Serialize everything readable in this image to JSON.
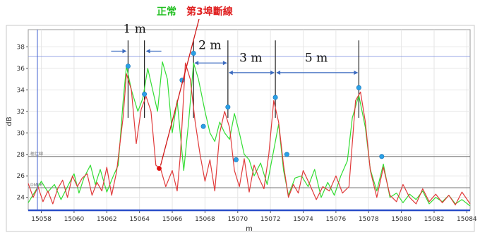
{
  "chart_data": {
    "type": "line",
    "xlabel": "m",
    "ylabel": "dB",
    "xlim": [
      15057.2,
      15084.2
    ],
    "ylim": [
      22.8,
      39.6
    ],
    "x_ticks": [
      15058,
      15060,
      15062,
      15064,
      15066,
      15068,
      15070,
      15072,
      15074,
      15076,
      15078,
      15080,
      15082,
      15084
    ],
    "y_ticks": [
      24,
      26,
      28,
      30,
      32,
      34,
      36,
      38
    ],
    "grid": true,
    "legend": {
      "normal_label": "正常",
      "broken_label": "第3埠斷線",
      "normal_color": "#33dd33",
      "broken_color": "#e03a3a"
    },
    "ref_lines": [
      {
        "y": 27.8,
        "label": "極佳線"
      },
      {
        "y": 24.9,
        "label": "DMPR"
      }
    ],
    "series": [
      {
        "name": "正常",
        "color": "#33dd33",
        "x": [
          15057.2,
          15057.6,
          15058.0,
          15058.4,
          15058.8,
          15059.2,
          15059.6,
          15060.0,
          15060.3,
          15060.6,
          15061.0,
          15061.3,
          15061.6,
          15062.0,
          15062.4,
          15062.7,
          15063.0,
          15063.2,
          15063.5,
          15063.9,
          15064.2,
          15064.5,
          15064.8,
          15065.1,
          15065.4,
          15065.7,
          15066.0,
          15066.3,
          15066.7,
          15067.0,
          15067.3,
          15067.6,
          15068.0,
          15068.3,
          15068.6,
          15068.9,
          15069.2,
          15069.5,
          15069.8,
          15070.1,
          15070.4,
          15070.7,
          15071.0,
          15071.4,
          15071.8,
          15072.2,
          15072.5,
          15072.8,
          15073.1,
          15073.5,
          15073.9,
          15074.3,
          15074.7,
          15075.1,
          15075.5,
          15075.9,
          15076.3,
          15076.7,
          15077.0,
          15077.4,
          15077.8,
          15078.1,
          15078.5,
          15078.9,
          15079.3,
          15079.7,
          15080.1,
          15080.5,
          15080.9,
          15081.3,
          15081.7,
          15082.1,
          15082.5,
          15082.9,
          15083.3,
          15083.7,
          15084.2
        ],
        "y": [
          23.5,
          24.5,
          25.5,
          24.5,
          25.2,
          23.8,
          25.0,
          26.2,
          24.4,
          25.8,
          27.0,
          25.2,
          26.6,
          24.5,
          26.0,
          27.0,
          33.0,
          36.2,
          34.0,
          32.0,
          33.2,
          36.0,
          34.0,
          32.0,
          36.6,
          35.0,
          30.0,
          33.0,
          26.5,
          31.0,
          36.5,
          35.0,
          32.0,
          30.0,
          29.2,
          31.0,
          30.0,
          29.4,
          31.8,
          30.0,
          28.0,
          27.5,
          26.0,
          27.2,
          25.2,
          28.4,
          30.8,
          26.5,
          24.2,
          25.8,
          26.0,
          25.0,
          26.6,
          24.0,
          25.4,
          24.2,
          26.0,
          27.4,
          31.4,
          33.5,
          30.5,
          26.6,
          24.6,
          27.1,
          24.0,
          24.4,
          23.5,
          24.3,
          23.8,
          24.6,
          23.4,
          24.0,
          23.6,
          24.2,
          23.4,
          23.8,
          23.2
        ]
      },
      {
        "name": "第3埠斷線",
        "color": "#e03a3a",
        "x": [
          15057.2,
          15057.5,
          15057.8,
          15058.1,
          15058.4,
          15058.7,
          15059.0,
          15059.3,
          15059.6,
          15059.9,
          15060.2,
          15060.5,
          15060.8,
          15061.1,
          15061.4,
          15061.7,
          15062.0,
          15062.3,
          15062.6,
          15063.0,
          15063.2,
          15063.5,
          15063.8,
          15064.1,
          15064.4,
          15064.7,
          15065.0,
          15065.3,
          15065.6,
          15066.0,
          15066.3,
          15066.5,
          15066.8,
          15067.1,
          15067.4,
          15067.7,
          15068.0,
          15068.3,
          15068.6,
          15068.9,
          15069.2,
          15069.5,
          15069.8,
          15070.1,
          15070.4,
          15070.7,
          15071.0,
          15071.3,
          15071.6,
          15071.9,
          15072.2,
          15072.5,
          15072.8,
          15073.1,
          15073.4,
          15073.7,
          15074.0,
          15074.4,
          15074.8,
          15075.2,
          15075.6,
          15076.0,
          15076.4,
          15076.8,
          15077.2,
          15077.5,
          15077.8,
          15078.1,
          15078.5,
          15078.9,
          15079.3,
          15079.7,
          15080.1,
          15080.5,
          15080.9,
          15081.3,
          15081.7,
          15082.1,
          15082.5,
          15082.9,
          15083.3,
          15083.7,
          15084.2
        ],
        "y": [
          25.3,
          24.0,
          25.0,
          23.6,
          24.6,
          23.4,
          24.8,
          25.6,
          24.0,
          26.0,
          25.0,
          25.8,
          26.2,
          24.2,
          25.4,
          24.6,
          26.8,
          24.2,
          26.4,
          31.5,
          35.5,
          34.0,
          29.0,
          32.2,
          33.4,
          32.0,
          27.0,
          26.6,
          25.0,
          26.5,
          24.6,
          28.0,
          36.5,
          35.0,
          31.0,
          28.0,
          25.5,
          27.5,
          24.6,
          30.0,
          32.0,
          30.5,
          26.5,
          25.0,
          27.6,
          24.5,
          27.0,
          25.8,
          24.8,
          28.0,
          33.0,
          31.0,
          27.0,
          24.0,
          25.2,
          24.4,
          26.5,
          25.2,
          23.8,
          25.0,
          24.6,
          26.0,
          24.4,
          25.0,
          33.0,
          33.8,
          31.0,
          26.5,
          24.0,
          26.8,
          24.2,
          23.6,
          25.2,
          24.0,
          23.4,
          24.8,
          23.6,
          24.3,
          23.5,
          24.2,
          23.3,
          24.5,
          23.4
        ]
      }
    ],
    "markers_blue": [
      {
        "x": 15063.3,
        "y": 36.2
      },
      {
        "x": 15064.3,
        "y": 33.6
      },
      {
        "x": 15066.6,
        "y": 34.9
      },
      {
        "x": 15067.3,
        "y": 37.4
      },
      {
        "x": 15067.9,
        "y": 30.6
      },
      {
        "x": 15069.4,
        "y": 32.4
      },
      {
        "x": 15069.9,
        "y": 27.5
      },
      {
        "x": 15072.3,
        "y": 33.3
      },
      {
        "x": 15073.0,
        "y": 28.0
      },
      {
        "x": 15077.4,
        "y": 34.2
      },
      {
        "x": 15078.8,
        "y": 27.8
      }
    ],
    "marker_red": {
      "x": 15065.2,
      "y": 26.7
    },
    "dimension_annotations": [
      {
        "label": "1 m",
        "from": 15063.3,
        "to": 15064.3,
        "level": 37.6,
        "label_x": 15063.7,
        "label_y": 39.3,
        "style": "outside"
      },
      {
        "label": "2 m",
        "from": 15067.3,
        "to": 15069.4,
        "level": 36.5,
        "label_x": 15068.3,
        "label_y": 37.8,
        "style": "inside"
      },
      {
        "label": "3 m",
        "from": 15069.4,
        "to": 15072.3,
        "level": 35.6,
        "label_x": 15070.8,
        "label_y": 36.6,
        "style": "inside"
      },
      {
        "label": "5 m",
        "from": 15072.3,
        "to": 15077.4,
        "level": 35.6,
        "label_x": 15074.8,
        "label_y": 36.6,
        "style": "inside"
      }
    ],
    "cursor_lines": [
      15063.3,
      15064.3,
      15067.3,
      15069.4,
      15072.3,
      15077.4
    ]
  }
}
